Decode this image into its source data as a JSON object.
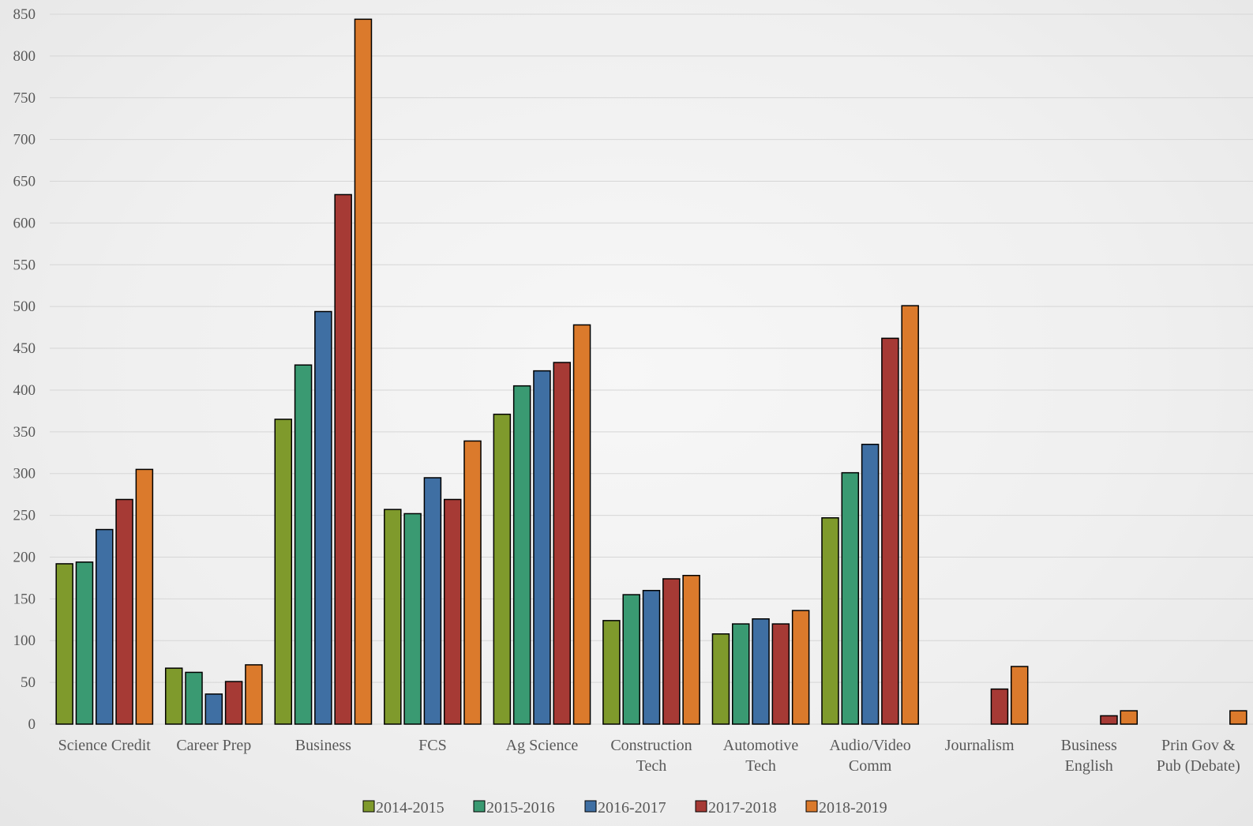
{
  "chart_data": {
    "type": "bar",
    "categories": [
      "Science Credit",
      "Career Prep",
      "Business",
      "FCS",
      "Ag Science",
      "Construction Tech",
      "Automotive Tech",
      "Audio/Video Comm",
      "Journalism",
      "Business English",
      "Prin Gov & Pub (Debate)"
    ],
    "category_lines": [
      [
        "Science Credit"
      ],
      [
        "Career Prep"
      ],
      [
        "Business"
      ],
      [
        "FCS"
      ],
      [
        "Ag Science"
      ],
      [
        "Construction",
        "Tech"
      ],
      [
        "Automotive",
        "Tech"
      ],
      [
        "Audio/Video",
        "Comm"
      ],
      [
        "Journalism"
      ],
      [
        "Business",
        "English"
      ],
      [
        "Prin Gov &",
        "Pub (Debate)"
      ]
    ],
    "series": [
      {
        "name": "2014-2015",
        "color": "#7f9a2c",
        "values": [
          192,
          67,
          365,
          257,
          371,
          124,
          108,
          247,
          0,
          0,
          0
        ]
      },
      {
        "name": "2015-2016",
        "color": "#3a9a72",
        "values": [
          194,
          62,
          430,
          252,
          405,
          155,
          120,
          301,
          0,
          0,
          0
        ]
      },
      {
        "name": "2016-2017",
        "color": "#3f6fa3",
        "values": [
          233,
          36,
          494,
          295,
          423,
          160,
          126,
          335,
          0,
          0,
          0
        ]
      },
      {
        "name": "2017-2018",
        "color": "#a63a35",
        "values": [
          269,
          51,
          634,
          269,
          433,
          174,
          120,
          462,
          42,
          10,
          0
        ]
      },
      {
        "name": "2018-2019",
        "color": "#db7a2c",
        "values": [
          305,
          71,
          844,
          339,
          478,
          178,
          136,
          501,
          69,
          16,
          16
        ]
      }
    ],
    "ylim": [
      0,
      850
    ],
    "yticks": [
      0,
      50,
      100,
      150,
      200,
      250,
      300,
      350,
      400,
      450,
      500,
      550,
      600,
      650,
      700,
      750,
      800,
      850
    ],
    "title": "",
    "xlabel": "",
    "ylabel": "",
    "grid": true,
    "legend_position": "bottom"
  }
}
